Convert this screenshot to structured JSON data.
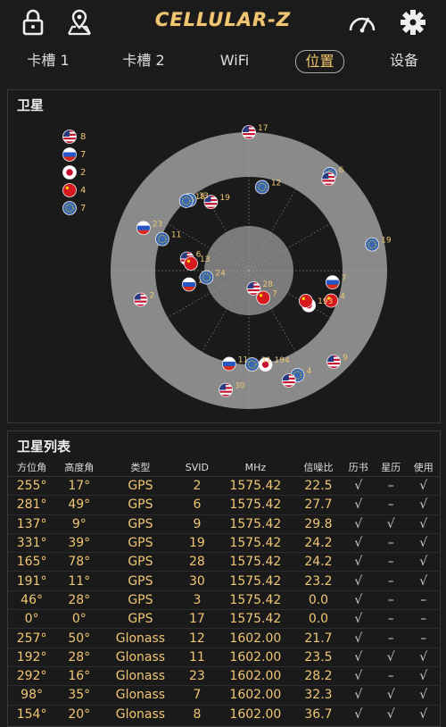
{
  "app": {
    "logo": "CELLULAR-Z"
  },
  "header": {
    "icons": [
      "lock-icon",
      "map-pin-icon",
      "speedometer-icon",
      "gear-icon"
    ]
  },
  "tabs": [
    {
      "label": "卡槽 1",
      "active": false
    },
    {
      "label": "卡槽 2",
      "active": false
    },
    {
      "label": "WiFi",
      "active": false
    },
    {
      "label": "位置",
      "active": true
    },
    {
      "label": "设备",
      "active": false
    }
  ],
  "sky_panel": {
    "title": "卫星",
    "legend": [
      {
        "flag": "usa",
        "count": "8"
      },
      {
        "flag": "russia",
        "count": "7"
      },
      {
        "flag": "japan",
        "count": "2"
      },
      {
        "flag": "china",
        "count": "4"
      },
      {
        "flag": "europe",
        "count": "7"
      }
    ],
    "satellites": [
      {
        "id": "17",
        "flag": "usa",
        "azimuth": 0,
        "elevation": 0
      },
      {
        "id": "12",
        "flag": "europe",
        "azimuth": 9,
        "elevation": 35
      },
      {
        "id": "19",
        "flag": "usa",
        "azimuth": 331,
        "elevation": 39
      },
      {
        "id": "33",
        "flag": "europe",
        "azimuth": 320,
        "elevation": 30
      },
      {
        "id": "18",
        "flag": "europe",
        "azimuth": 318,
        "elevation": 29
      },
      {
        "id": "6",
        "flag": "europe",
        "azimuth": 40,
        "elevation": 8
      },
      {
        "id": "",
        "flag": "usa",
        "azimuth": 41,
        "elevation": 11
      },
      {
        "id": "23",
        "flag": "russia",
        "azimuth": 292,
        "elevation": 16
      },
      {
        "id": "11",
        "flag": "europe",
        "azimuth": 290,
        "elevation": 30
      },
      {
        "id": "6",
        "flag": "usa",
        "azimuth": 281,
        "elevation": 49
      },
      {
        "id": "13",
        "flag": "china",
        "azimuth": 277,
        "elevation": 52
      },
      {
        "id": "12",
        "flag": "russia",
        "azimuth": 257,
        "elevation": 50
      },
      {
        "id": "24",
        "flag": "europe",
        "azimuth": 261,
        "elevation": 62
      },
      {
        "id": "2",
        "flag": "usa",
        "azimuth": 255,
        "elevation": 17
      },
      {
        "id": "28",
        "flag": "usa",
        "azimuth": 165,
        "elevation": 78
      },
      {
        "id": "7",
        "flag": "china",
        "azimuth": 152,
        "elevation": 70
      },
      {
        "id": "19",
        "flag": "europe",
        "azimuth": 78,
        "elevation": 8
      },
      {
        "id": "7",
        "flag": "russia",
        "azimuth": 98,
        "elevation": 35
      },
      {
        "id": "4",
        "flag": "china",
        "azimuth": 110,
        "elevation": 33
      },
      {
        "id": "193",
        "flag": "japan",
        "azimuth": 120,
        "elevation": 45
      },
      {
        "id": "",
        "flag": "china",
        "azimuth": 118,
        "elevation": 48
      },
      {
        "id": "9",
        "flag": "usa",
        "azimuth": 137,
        "elevation": 9
      },
      {
        "id": "4",
        "flag": "europe",
        "azimuth": 155,
        "elevation": 15
      },
      {
        "id": "",
        "flag": "usa",
        "azimuth": 160,
        "elevation": 14
      },
      {
        "id": "194",
        "flag": "japan",
        "azimuth": 170,
        "elevation": 28
      },
      {
        "id": "31",
        "flag": "europe",
        "azimuth": 178,
        "elevation": 29
      },
      {
        "id": "11",
        "flag": "russia",
        "azimuth": 192,
        "elevation": 28
      },
      {
        "id": "30",
        "flag": "usa",
        "azimuth": 191,
        "elevation": 11
      }
    ]
  },
  "list_panel": {
    "title": "卫星列表",
    "columns": [
      "方位角",
      "高度角",
      "类型",
      "SVID",
      "MHz",
      "信噪比",
      "历书",
      "星历",
      "使用"
    ],
    "rows": [
      [
        "255°",
        "17°",
        "GPS",
        "2",
        "1575.42",
        "22.5",
        "√",
        "–",
        "√"
      ],
      [
        "281°",
        "49°",
        "GPS",
        "6",
        "1575.42",
        "27.7",
        "√",
        "–",
        "√"
      ],
      [
        "137°",
        "9°",
        "GPS",
        "9",
        "1575.42",
        "29.8",
        "√",
        "√",
        "√"
      ],
      [
        "331°",
        "39°",
        "GPS",
        "19",
        "1575.42",
        "24.2",
        "√",
        "–",
        "√"
      ],
      [
        "165°",
        "78°",
        "GPS",
        "28",
        "1575.42",
        "24.2",
        "√",
        "–",
        "√"
      ],
      [
        "191°",
        "11°",
        "GPS",
        "30",
        "1575.42",
        "23.2",
        "√",
        "–",
        "√"
      ],
      [
        "46°",
        "28°",
        "GPS",
        "3",
        "1575.42",
        "0.0",
        "√",
        "–",
        "–"
      ],
      [
        "0°",
        "0°",
        "GPS",
        "17",
        "1575.42",
        "0.0",
        "√",
        "–",
        "–"
      ],
      [
        "257°",
        "50°",
        "Glonass",
        "12",
        "1602.00",
        "21.7",
        "√",
        "–",
        "–"
      ],
      [
        "192°",
        "28°",
        "Glonass",
        "11",
        "1602.00",
        "23.5",
        "√",
        "√",
        "√"
      ],
      [
        "292°",
        "16°",
        "Glonass",
        "23",
        "1602.00",
        "28.2",
        "√",
        "–",
        "√"
      ],
      [
        "98°",
        "35°",
        "Glonass",
        "7",
        "1602.00",
        "32.3",
        "√",
        "√",
        "√"
      ],
      [
        "154°",
        "20°",
        "Glonass",
        "8",
        "1602.00",
        "36.7",
        "√",
        "√",
        "√"
      ]
    ]
  },
  "colors": {
    "accent": "#f0c674",
    "panel": "#1a1a1a",
    "ring": "#8a8a8a"
  }
}
